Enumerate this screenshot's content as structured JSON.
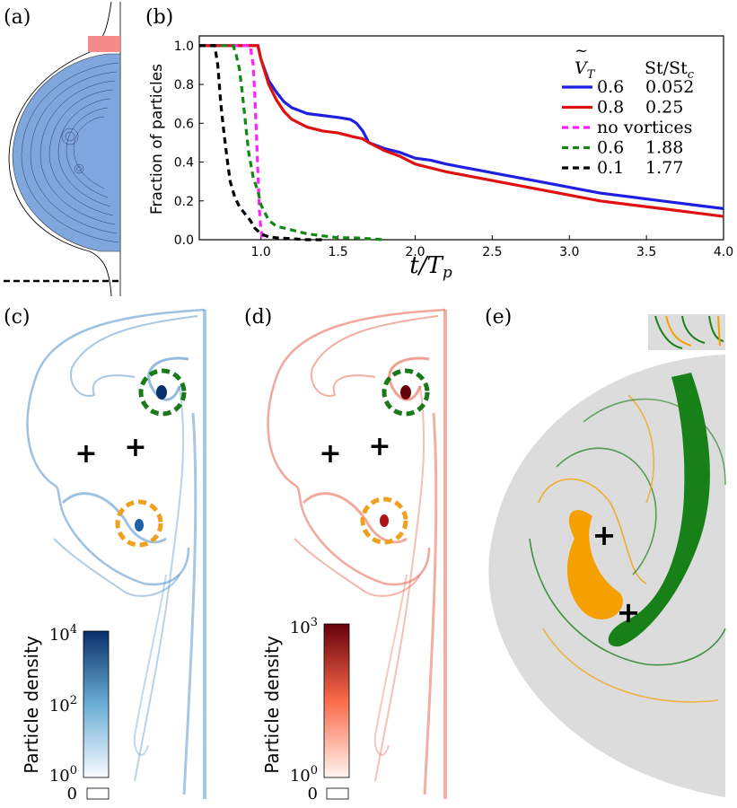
{
  "panels": {
    "a": "(a)",
    "b": "(b)",
    "c": "(c)",
    "d": "(d)",
    "e": "(e)"
  },
  "chart_data": {
    "type": "line",
    "ylabel": "Fraction of particles",
    "xlabel_main": "t/T",
    "xlabel_sub": "p",
    "xlim": [
      0.6,
      4.0
    ],
    "ylim": [
      0.0,
      1.05
    ],
    "xticks": [
      "1.0",
      "1.5",
      "2.0",
      "2.5",
      "3.0",
      "3.5",
      "4.0"
    ],
    "yticks": [
      "0.0",
      "0.2",
      "0.4",
      "0.6",
      "0.8",
      "1.0"
    ],
    "legend_placement": "top-right",
    "legend_header": {
      "col1": "V",
      "col1_sub": "T",
      "col2": "St/St",
      "col2_sub": "c"
    },
    "series": [
      {
        "label1": "0.6",
        "label2": "0.052",
        "color": "#1f1fe0",
        "dash": "solid",
        "x": [
          0.6,
          0.98,
          1.0,
          1.05,
          1.1,
          1.15,
          1.2,
          1.3,
          1.4,
          1.5,
          1.58,
          1.62,
          1.66,
          1.7,
          1.8,
          1.9,
          2.0,
          2.1,
          2.2,
          2.4,
          2.6,
          2.8,
          3.0,
          3.2,
          3.4,
          3.6,
          3.8,
          4.0
        ],
        "y": [
          1.0,
          1.0,
          0.93,
          0.82,
          0.76,
          0.71,
          0.68,
          0.65,
          0.64,
          0.63,
          0.62,
          0.6,
          0.56,
          0.5,
          0.47,
          0.45,
          0.42,
          0.41,
          0.39,
          0.36,
          0.33,
          0.3,
          0.27,
          0.24,
          0.22,
          0.2,
          0.18,
          0.16
        ]
      },
      {
        "label1": "0.8",
        "label2": "0.25",
        "color": "#e01010",
        "dash": "solid",
        "x": [
          0.6,
          0.98,
          1.0,
          1.05,
          1.1,
          1.15,
          1.2,
          1.3,
          1.4,
          1.5,
          1.6,
          1.66,
          1.7,
          1.8,
          1.9,
          2.0,
          2.1,
          2.2,
          2.4,
          2.6,
          2.8,
          3.0,
          3.2,
          3.4,
          3.6,
          3.8,
          4.0
        ],
        "y": [
          1.0,
          1.0,
          0.93,
          0.8,
          0.72,
          0.66,
          0.62,
          0.58,
          0.56,
          0.55,
          0.53,
          0.52,
          0.5,
          0.46,
          0.43,
          0.39,
          0.37,
          0.35,
          0.32,
          0.29,
          0.26,
          0.23,
          0.2,
          0.18,
          0.16,
          0.14,
          0.12
        ]
      },
      {
        "label1": "no vortices",
        "label2": "",
        "color": "#ff22ff",
        "dash": "dashed",
        "x": [
          0.6,
          0.93,
          0.95,
          0.96,
          0.97,
          0.98,
          0.99,
          1.0,
          1.01,
          1.03
        ],
        "y": [
          1.0,
          1.0,
          0.9,
          0.75,
          0.55,
          0.35,
          0.15,
          0.05,
          0.01,
          0.0
        ]
      },
      {
        "label1": "0.6",
        "label2": "1.88",
        "color": "#118811",
        "dash": "dashed",
        "x": [
          0.6,
          0.82,
          0.84,
          0.86,
          0.88,
          0.9,
          0.92,
          0.95,
          0.98,
          1.0,
          1.05,
          1.1,
          1.2,
          1.3,
          1.4,
          1.5,
          1.6,
          1.7,
          1.8
        ],
        "y": [
          1.0,
          1.0,
          0.95,
          0.88,
          0.75,
          0.6,
          0.45,
          0.32,
          0.25,
          0.18,
          0.1,
          0.07,
          0.05,
          0.03,
          0.02,
          0.01,
          0.01,
          0.005,
          0.0
        ]
      },
      {
        "label1": "0.1",
        "label2": "1.77",
        "color": "#000000",
        "dash": "dashed",
        "x": [
          0.6,
          0.7,
          0.72,
          0.74,
          0.76,
          0.78,
          0.8,
          0.83,
          0.86,
          0.9,
          0.93,
          0.96,
          1.0,
          1.05,
          1.1,
          1.2,
          1.3,
          1.4
        ],
        "y": [
          1.0,
          1.0,
          0.9,
          0.7,
          0.55,
          0.42,
          0.3,
          0.22,
          0.17,
          0.13,
          0.1,
          0.06,
          0.03,
          0.015,
          0.01,
          0.005,
          0.0,
          0.0
        ]
      }
    ]
  },
  "colorbars": {
    "c": {
      "top_base": "10",
      "top_exp": "4",
      "mid_base": "10",
      "mid_exp": "2",
      "bot_base": "10",
      "bot_exp": "0",
      "zero": "0",
      "label": "Particle density",
      "color_low": "#f7fbff",
      "color_high": "#08306b"
    },
    "d": {
      "top_base": "10",
      "top_exp": "3",
      "bot_base": "10",
      "bot_exp": "0",
      "zero": "0",
      "label": "Particle density",
      "color_low": "#fff5f0",
      "color_high": "#67000d"
    }
  },
  "colors": {
    "blue_fill": "#7fa6dd",
    "pink_patch": "#f58a8a",
    "blue_density": "#4f8fca",
    "red_density": "#e8604a",
    "green_circle": "#1a7a1a",
    "orange_circle": "#f0a020",
    "grey_bg": "#dcdcdc",
    "manifold_green": "#188018",
    "manifold_orange": "#f5a000"
  }
}
